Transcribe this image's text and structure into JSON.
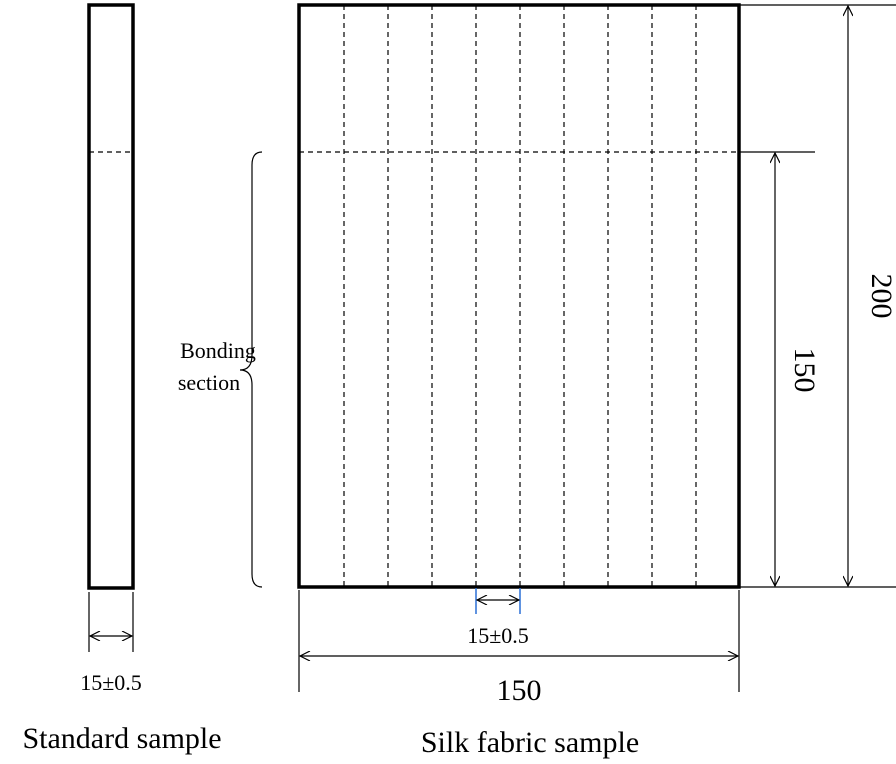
{
  "standard_sample": {
    "label": "Standard sample",
    "width_dimension": "15±0.5"
  },
  "silk_fabric_sample": {
    "label": "Silk fabric sample",
    "strip_width_dimension": "15±0.5",
    "width_dimension": "150",
    "bonded_length_dimension": "150",
    "total_length_dimension": "200"
  },
  "bonding_section": {
    "label_lines": [
      "Bonding",
      "section"
    ]
  }
}
